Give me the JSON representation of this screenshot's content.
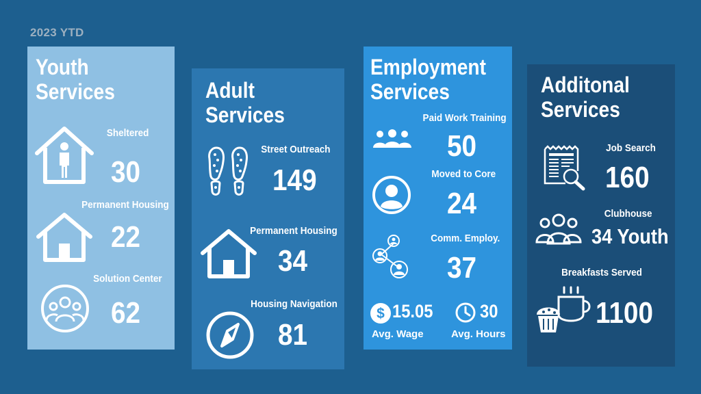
{
  "header": {
    "period": "2023 YTD"
  },
  "youth": {
    "title_line1": "Youth",
    "title_line2": "Services",
    "items": [
      {
        "label": "Sheltered",
        "value": "30",
        "icon": "person-in-house-icon"
      },
      {
        "label": "Permanent Housing",
        "value": "22",
        "icon": "house-icon"
      },
      {
        "label": "Solution Center",
        "value": "62",
        "icon": "group-circle-icon"
      }
    ]
  },
  "adult": {
    "title_line1": "Adult",
    "title_line2": "Services",
    "items": [
      {
        "label": "Street Outreach",
        "value": "149",
        "icon": "footprints-icon"
      },
      {
        "label": "Permanent Housing",
        "value": "34",
        "icon": "house-icon"
      },
      {
        "label": "Housing Navigation",
        "value": "81",
        "icon": "compass-icon"
      }
    ]
  },
  "employment": {
    "title_line1": "Employment",
    "title_line2": "Services",
    "items": [
      {
        "label": "Paid Work Training",
        "value": "50",
        "icon": "group-icon"
      },
      {
        "label": "Moved to Core",
        "value": "24",
        "icon": "person-circle-icon"
      },
      {
        "label": "Comm. Employ.",
        "value": "37",
        "icon": "network-icon"
      }
    ],
    "wage": {
      "value": "15.05",
      "label": "Avg. Wage",
      "icon": "dollar-icon"
    },
    "hours": {
      "value": "30",
      "label": "Avg. Hours",
      "icon": "clock-icon"
    }
  },
  "additional": {
    "title_line1": "Additonal",
    "title_line2": "Services",
    "items": [
      {
        "label": "Job Search",
        "value": "160",
        "icon": "newspaper-search-icon"
      },
      {
        "label": "Clubhouse",
        "value": "34 Youth",
        "icon": "people-icon"
      },
      {
        "label": "Breakfasts Served",
        "value": "1100",
        "icon": "breakfast-icon"
      }
    ]
  }
}
